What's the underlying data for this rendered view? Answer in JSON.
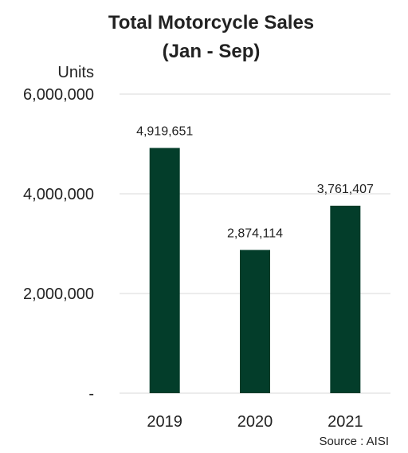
{
  "chart_data": {
    "type": "bar",
    "title": [
      "Total Motorcycle Sales",
      "(Jan - Sep)"
    ],
    "ylabel": "Units",
    "xlabel": "",
    "categories": [
      "2019",
      "2020",
      "2021"
    ],
    "values": [
      4919651,
      2874114,
      3761407
    ],
    "data_labels": [
      "4,919,651",
      "2,874,114",
      "3,761,407"
    ],
    "ylim": [
      0,
      6000000
    ],
    "yticks": [
      0,
      2000000,
      4000000,
      6000000
    ],
    "ytick_labels": [
      "-",
      "2,000,000",
      "4,000,000",
      "6,000,000"
    ],
    "grid": true,
    "legend": "none",
    "bar_color": "#033d2a",
    "grid_color": "#d9d9d9",
    "source": "Source : AISI"
  }
}
